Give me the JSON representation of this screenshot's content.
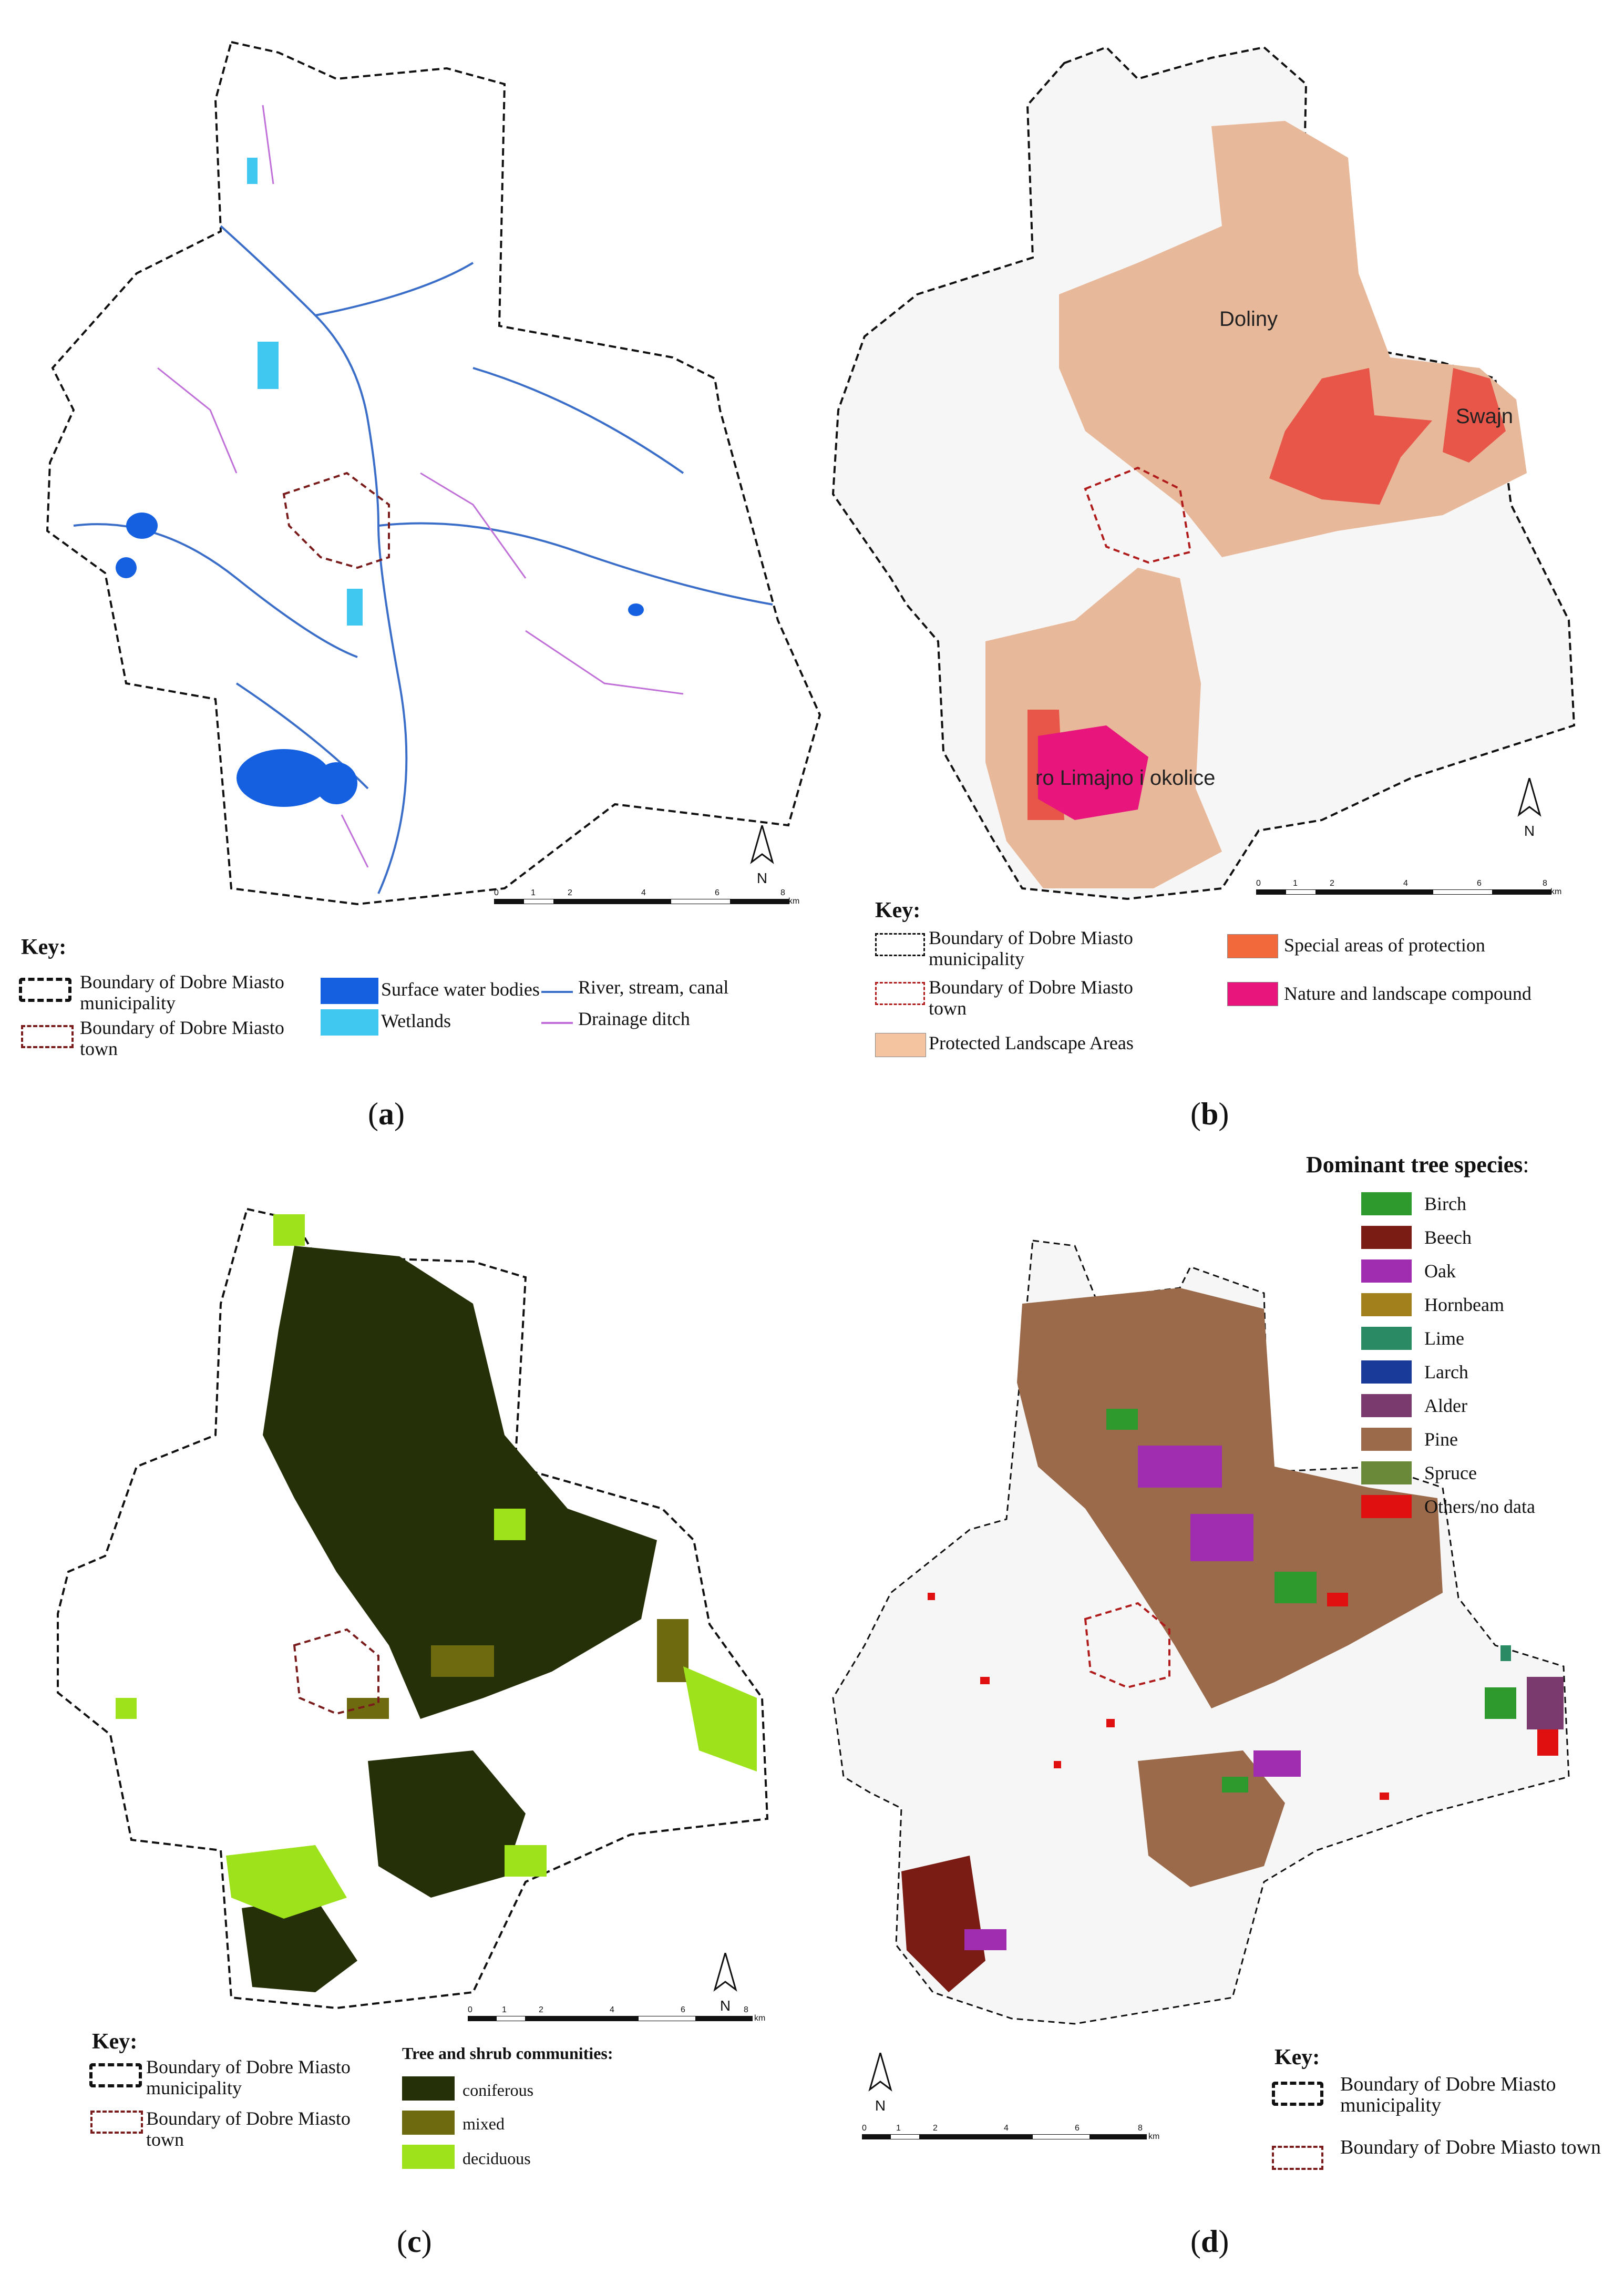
{
  "panels": {
    "a": {
      "caption_paren_open": "(",
      "caption_letter": "a",
      "caption_paren_close": ")",
      "key_title": "Key:",
      "legend": {
        "muni": "Boundary of Dobre Miasto municipality",
        "town": "Boundary of Dobre Miasto town",
        "surface_water": "Surface water bodies",
        "wetlands": "Wetlands",
        "river": "River, stream, canal",
        "drainage": "Drainage ditch"
      },
      "north": "N",
      "scale": [
        "0",
        "1",
        "2",
        "4",
        "6",
        "8"
      ],
      "scale_unit": "km",
      "colors": {
        "surface_water": "#1560e0",
        "wetlands": "#40c8f0",
        "river": "#3a6ec8",
        "drainage": "#c070d8"
      }
    },
    "b": {
      "caption_paren_open": "(",
      "caption_letter": "b",
      "caption_paren_close": ")",
      "key_title": "Key:",
      "legend": {
        "muni": "Boundary of Dobre Miasto municipality",
        "town": "Boundary of Dobre Miasto town",
        "protected": "Protected Landscape Areas",
        "special": "Special areas of protection",
        "nature": "Nature and landscape compound"
      },
      "map_labels": {
        "doliny": "Doliny",
        "swajn": "Swajn",
        "limajno": "ro Limajno i okolice"
      },
      "north": "N",
      "scale": [
        "0",
        "1",
        "2",
        "4",
        "6",
        "8"
      ],
      "scale_unit": "km",
      "colors": {
        "protected": "#f4c4a0",
        "special": "#f26a3c",
        "nature": "#e8157c"
      }
    },
    "c": {
      "caption_paren_open": "(",
      "caption_letter": "c",
      "caption_paren_close": ")",
      "key_title": "Key:",
      "legend": {
        "muni": "Boundary of Dobre Miasto municipality",
        "town": "Boundary of Dobre Miasto town",
        "communities_title": "Tree and shrub communities:",
        "coniferous": "coniferous",
        "mixed": "mixed",
        "deciduous": "deciduous"
      },
      "north": "N",
      "scale": [
        "0",
        "1",
        "2",
        "4",
        "6",
        "8"
      ],
      "scale_unit": "km",
      "colors": {
        "coniferous": "#263008",
        "mixed": "#6e6a10",
        "deciduous": "#9ee21c"
      }
    },
    "d": {
      "caption_paren_open": "(",
      "caption_letter": "d",
      "caption_paren_close": ")",
      "species_title": "Dominant tree species",
      "species_colon": ":",
      "species": [
        {
          "label": "Birch",
          "color": "#2e9a2e"
        },
        {
          "label": "Beech",
          "color": "#7a1c14"
        },
        {
          "label": "Oak",
          "color": "#a02cb0"
        },
        {
          "label": "Hornbeam",
          "color": "#a2801c"
        },
        {
          "label": "Lime",
          "color": "#2a8a64"
        },
        {
          "label": "Larch",
          "color": "#1a3a9a"
        },
        {
          "label": "Alder",
          "color": "#7a3a6e"
        },
        {
          "label": "Pine",
          "color": "#9a6a4a"
        },
        {
          "label": "Spruce",
          "color": "#6a8a3a"
        },
        {
          "label": "Others/no data",
          "color": "#e01010"
        }
      ],
      "key_title": "Key:",
      "legend": {
        "muni": "Boundary of Dobre Miasto municipality",
        "town": "Boundary of Dobre Miasto town"
      },
      "north": "N",
      "scale": [
        "0",
        "1",
        "2",
        "4",
        "6",
        "8"
      ],
      "scale_unit": "km"
    }
  }
}
